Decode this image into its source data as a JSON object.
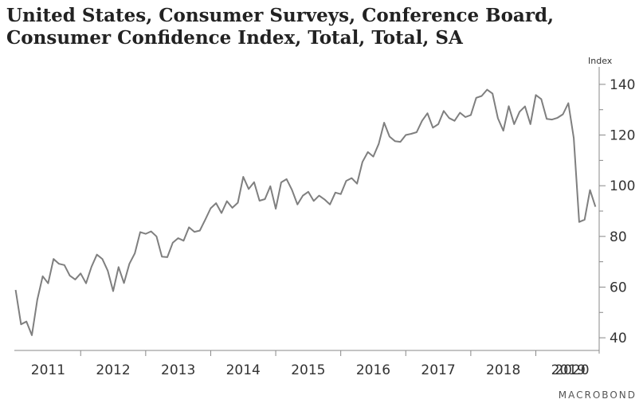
{
  "title_line1": "United States, Consumer Surveys, Conference Board,",
  "title_line2": "Consumer Confidence Index, Total, Total, SA",
  "y_unit_label": "Index",
  "brand": "MACROBOND",
  "colors": {
    "line": "#7f7f7f",
    "axis": "#888888",
    "text": "#333333"
  },
  "chart_data": {
    "type": "line",
    "title": "United States, Consumer Surveys, Conference Board, Consumer Confidence Index, Total, Total, SA",
    "xlabel": "",
    "ylabel": "Index",
    "ylim": [
      35,
      145
    ],
    "y_ticks": [
      40,
      60,
      80,
      100,
      120,
      140
    ],
    "x_ticks": [
      "2011",
      "2012",
      "2013",
      "2014",
      "2015",
      "2016",
      "2017",
      "2018",
      "2019",
      "2020"
    ],
    "grid": false,
    "y_axis_side": "right",
    "series": [
      {
        "start": "2011-01",
        "frequency": "monthly",
        "values": [
          58.9,
          45.3,
          46.4,
          41.0,
          55.0,
          64.3,
          61.5,
          71.1,
          69.2,
          68.7,
          64.5,
          63.0,
          65.4,
          61.5,
          68.0,
          72.8,
          71.1,
          66.5,
          58.4,
          67.9,
          61.6,
          69.2,
          73.3,
          81.7,
          81.0,
          82.0,
          80.0,
          72.0,
          71.8,
          77.5,
          79.3,
          78.3,
          83.6,
          81.8,
          82.3,
          86.6,
          91.1,
          93.1,
          89.2,
          93.9,
          91.3,
          93.3,
          103.5,
          98.7,
          101.4,
          94.1,
          94.7,
          99.8,
          90.9,
          101.3,
          102.6,
          98.3,
          92.6,
          96.1,
          97.6,
          94.0,
          96.1,
          94.6,
          92.6,
          97.3,
          96.7,
          101.9,
          103.0,
          100.8,
          109.4,
          113.3,
          111.5,
          116.5,
          124.9,
          119.4,
          117.6,
          117.3,
          120.0,
          120.5,
          121.1,
          125.6,
          128.6,
          122.9,
          124.3,
          129.5,
          126.7,
          125.6,
          128.8,
          127.1,
          127.9,
          134.7,
          135.4,
          137.9,
          136.4,
          126.6,
          121.7,
          131.4,
          124.3,
          129.2,
          131.3,
          124.3,
          135.8,
          134.2,
          126.4,
          126.1,
          126.8,
          128.2,
          132.6,
          118.8,
          85.7,
          86.6,
          98.3,
          91.7
        ]
      }
    ]
  }
}
